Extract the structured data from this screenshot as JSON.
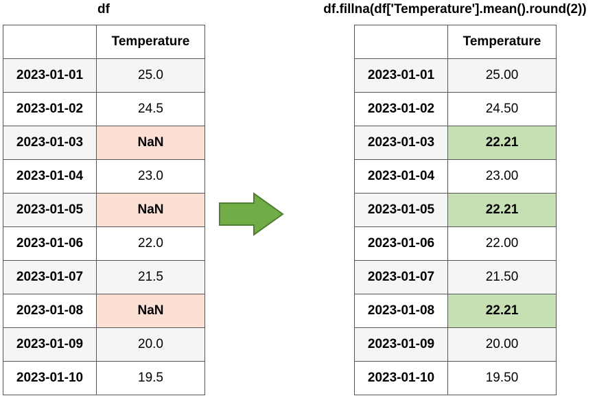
{
  "left": {
    "title": "df",
    "column_header": "Temperature",
    "rows": [
      {
        "index": "2023-01-01",
        "value": "25.0",
        "missing": false
      },
      {
        "index": "2023-01-02",
        "value": "24.5",
        "missing": false
      },
      {
        "index": "2023-01-03",
        "value": "NaN",
        "missing": true
      },
      {
        "index": "2023-01-04",
        "value": "23.0",
        "missing": false
      },
      {
        "index": "2023-01-05",
        "value": "NaN",
        "missing": true
      },
      {
        "index": "2023-01-06",
        "value": "22.0",
        "missing": false
      },
      {
        "index": "2023-01-07",
        "value": "21.5",
        "missing": false
      },
      {
        "index": "2023-01-08",
        "value": "NaN",
        "missing": true
      },
      {
        "index": "2023-01-09",
        "value": "20.0",
        "missing": false
      },
      {
        "index": "2023-01-10",
        "value": "19.5",
        "missing": false
      }
    ]
  },
  "right": {
    "title": "df.fillna(df['Temperature'].mean().round(2))",
    "column_header": "Temperature",
    "rows": [
      {
        "index": "2023-01-01",
        "value": "25.00",
        "filled": false
      },
      {
        "index": "2023-01-02",
        "value": "24.50",
        "filled": false
      },
      {
        "index": "2023-01-03",
        "value": "22.21",
        "filled": true
      },
      {
        "index": "2023-01-04",
        "value": "23.00",
        "filled": false
      },
      {
        "index": "2023-01-05",
        "value": "22.21",
        "filled": true
      },
      {
        "index": "2023-01-06",
        "value": "22.00",
        "filled": false
      },
      {
        "index": "2023-01-07",
        "value": "21.50",
        "filled": false
      },
      {
        "index": "2023-01-08",
        "value": "22.21",
        "filled": true
      },
      {
        "index": "2023-01-09",
        "value": "20.00",
        "filled": false
      },
      {
        "index": "2023-01-10",
        "value": "19.50",
        "filled": false
      }
    ]
  },
  "colors": {
    "missing_cell": "#fbe0d3",
    "filled_cell": "#c6e0b4",
    "arrow_fill": "#70ad47",
    "arrow_stroke": "#507e32"
  },
  "icons": {
    "arrow": "right-arrow-icon"
  }
}
